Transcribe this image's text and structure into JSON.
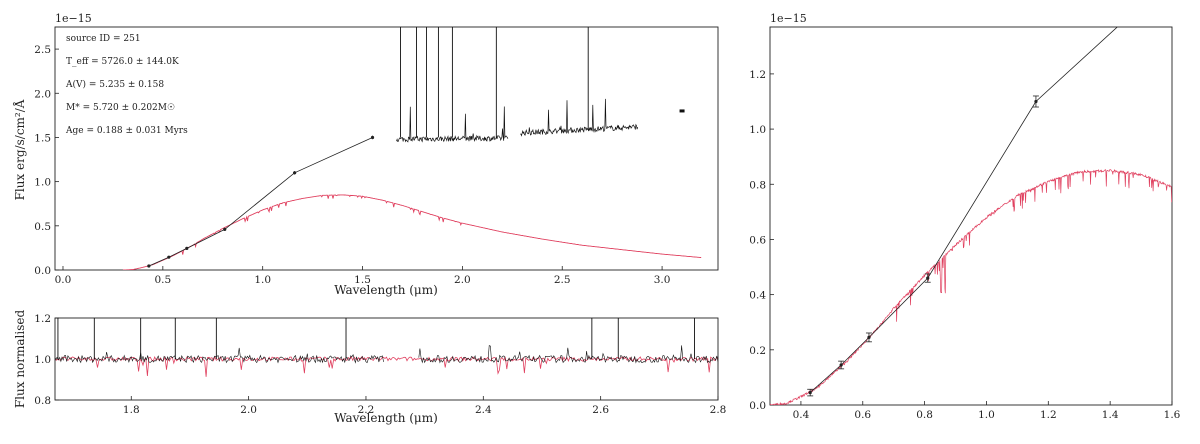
{
  "chart_data": [
    {
      "id": "sed",
      "type": "line",
      "xlabel": "Wavelength (μm)",
      "ylabel": "Flux erg/s/cm²/Å",
      "offset_label": "1e−15",
      "xlim": [
        -0.04,
        3.28
      ],
      "ylim": [
        0,
        2.75
      ],
      "xticks": [
        0.0,
        0.5,
        1.0,
        1.5,
        2.0,
        2.5,
        3.0
      ],
      "xtick_labels": [
        "0.0",
        "0.5",
        "1.0",
        "1.5",
        "2.0",
        "2.5",
        "3.0"
      ],
      "yticks": [
        0.0,
        0.5,
        1.0,
        1.5,
        2.0,
        2.5
      ],
      "ytick_labels": [
        "0.0",
        "0.5",
        "1.0",
        "1.5",
        "2.0",
        "2.5"
      ],
      "annotations": [
        "source ID = 251",
        "T_eff = 5726.0 ± 144.0K",
        "A(V) = 5.235 ± 0.158",
        "M* = 5.720 ± 0.202M☉",
        "Age = 0.188 ± 0.031 Myrs"
      ],
      "photometry": {
        "x": [
          0.43,
          0.53,
          0.62,
          0.81,
          1.16,
          1.55
        ],
        "y": [
          0.045,
          0.145,
          0.245,
          0.46,
          1.1,
          1.5
        ],
        "err": [
          0.012,
          0.014,
          0.016,
          0.015,
          0.02,
          0.02
        ],
        "color": "#222222"
      },
      "model": {
        "color": "#e0405f",
        "x": [
          0.3,
          0.35,
          0.4,
          0.45,
          0.5,
          0.55,
          0.6,
          0.65,
          0.7,
          0.75,
          0.8,
          0.9,
          1.0,
          1.1,
          1.2,
          1.3,
          1.4,
          1.5,
          1.6,
          1.7,
          1.8,
          1.9,
          2.0,
          2.2,
          2.4,
          2.6,
          2.8,
          3.0,
          3.2
        ],
        "y": [
          0.0,
          0.005,
          0.03,
          0.06,
          0.11,
          0.16,
          0.22,
          0.28,
          0.35,
          0.41,
          0.47,
          0.58,
          0.68,
          0.76,
          0.81,
          0.845,
          0.85,
          0.835,
          0.79,
          0.73,
          0.66,
          0.59,
          0.53,
          0.43,
          0.35,
          0.28,
          0.23,
          0.18,
          0.14
        ]
      },
      "spectrum_segments": [
        {
          "x_range": [
            1.67,
            2.23
          ],
          "level": 1.48
        },
        {
          "x_range": [
            2.29,
            2.88
          ],
          "level": 1.55
        }
      ],
      "isolated_point": {
        "x": 3.1,
        "y": 1.8
      }
    },
    {
      "id": "normalised",
      "type": "line",
      "xlabel": "Wavelength (μm)",
      "ylabel": "Flux normalised",
      "xlim": [
        1.67,
        2.8
      ],
      "ylim": [
        0.8,
        1.2
      ],
      "xticks": [
        1.8,
        2.0,
        2.2,
        2.4,
        2.6,
        2.8
      ],
      "xtick_labels": [
        "1.8",
        "2.0",
        "2.2",
        "2.4",
        "2.6",
        "2.8"
      ],
      "yticks": [
        0.8,
        1.0,
        1.2
      ],
      "ytick_labels": [
        "0.8",
        "1.0",
        "1.2"
      ],
      "gap": [
        2.23,
        2.29
      ],
      "emission_lines": [
        1.675,
        1.737,
        1.816,
        1.875,
        1.945,
        2.166,
        2.585,
        2.63,
        2.76
      ],
      "colors": {
        "observed": "#111111",
        "model": "#e0405f"
      }
    },
    {
      "id": "zoom",
      "type": "line",
      "offset_label": "1e−15",
      "xlim": [
        0.3,
        1.6
      ],
      "ylim": [
        0,
        1.37
      ],
      "xticks": [
        0.4,
        0.6,
        0.8,
        1.0,
        1.2,
        1.4,
        1.6
      ],
      "xtick_labels": [
        "0.4",
        "0.6",
        "0.8",
        "1.0",
        "1.2",
        "1.4",
        "1.6"
      ],
      "yticks": [
        0.0,
        0.2,
        0.4,
        0.6,
        0.8,
        1.0,
        1.2
      ],
      "ytick_labels": [
        "0.0",
        "0.2",
        "0.4",
        "0.6",
        "0.8",
        "1.0",
        "1.2"
      ]
    }
  ]
}
